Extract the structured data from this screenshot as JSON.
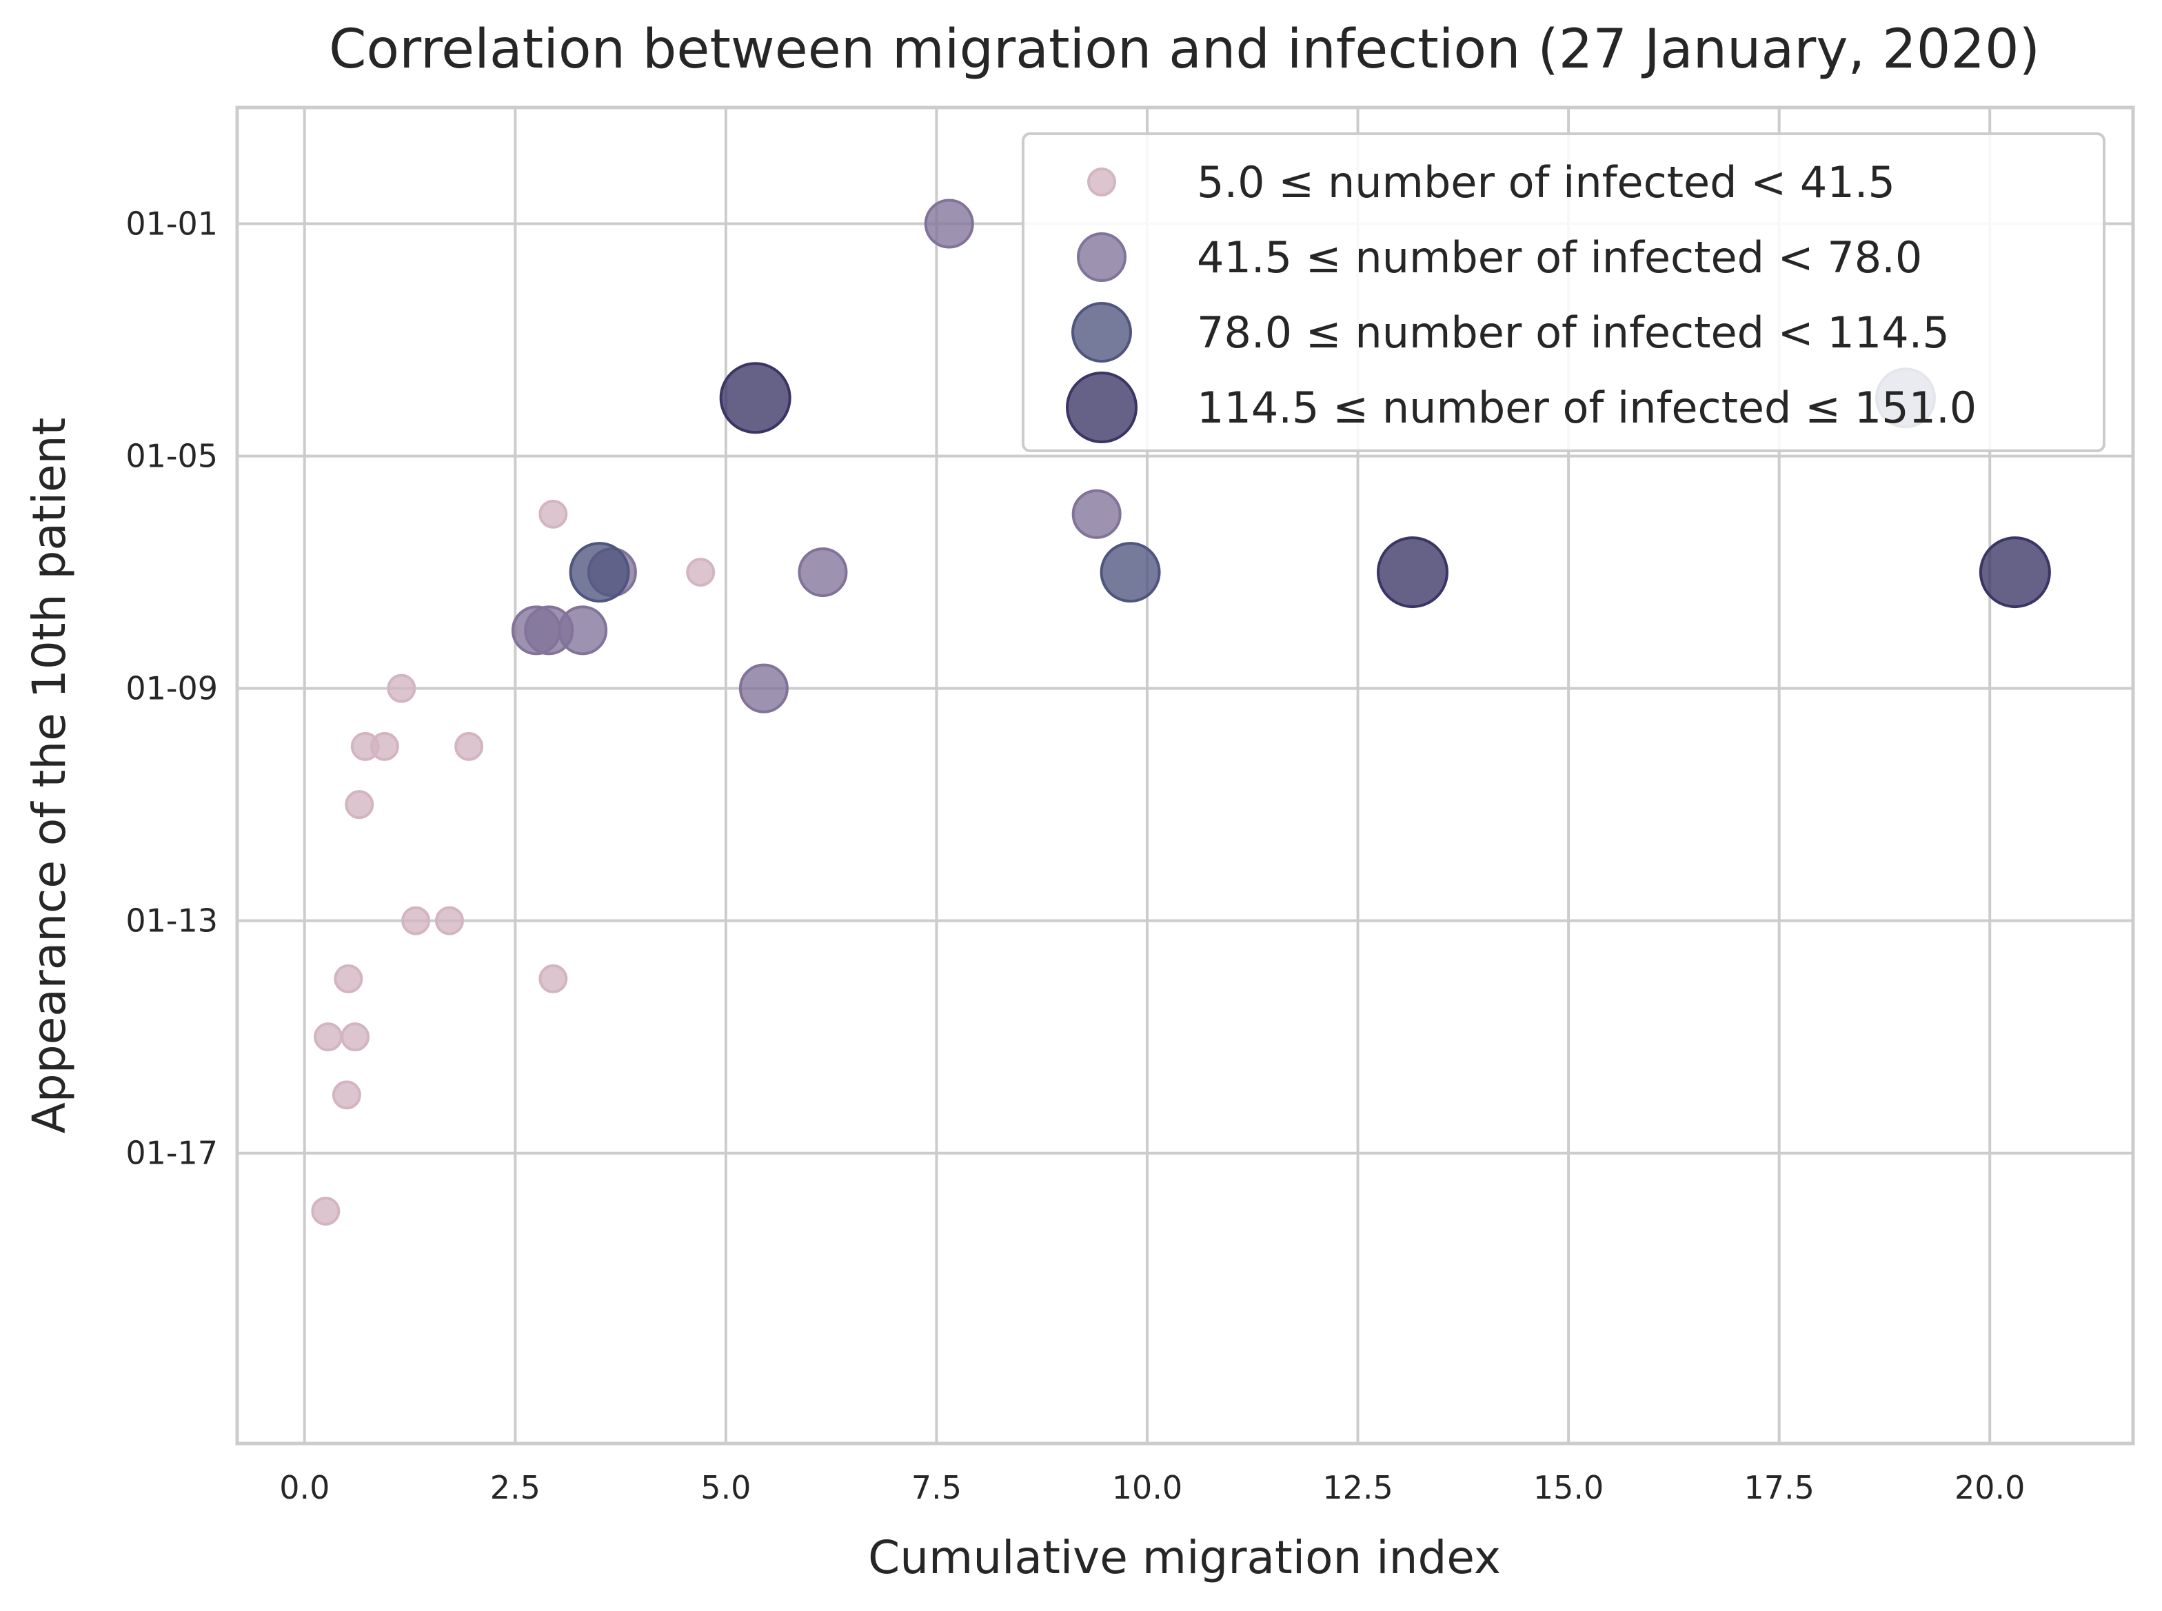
{
  "chart_data": {
    "type": "scatter",
    "title": "Correlation between migration and infection (27 January, 2020)",
    "xlabel": "Cumulative migration index",
    "ylabel": "Appearance of the 10th patient",
    "xlim": [
      -0.8,
      21.7
    ],
    "ylim": [
      -21,
      2
    ],
    "grid": true,
    "legend_position": "top-right",
    "x_ticks": [
      {
        "value": 0.0,
        "label": "0.0"
      },
      {
        "value": 2.5,
        "label": "2.5"
      },
      {
        "value": 5.0,
        "label": "5.0"
      },
      {
        "value": 7.5,
        "label": "7.5"
      },
      {
        "value": 10.0,
        "label": "10.0"
      },
      {
        "value": 12.5,
        "label": "12.5"
      },
      {
        "value": 15.0,
        "label": "15.0"
      },
      {
        "value": 17.5,
        "label": "17.5"
      },
      {
        "value": 20.0,
        "label": "20.0"
      }
    ],
    "y_ticks": [
      {
        "value": -16,
        "label": "01-17"
      },
      {
        "value": -12,
        "label": "01-13"
      },
      {
        "value": -8,
        "label": "01-09"
      },
      {
        "value": -4,
        "label": "01-05"
      },
      {
        "value": 0,
        "label": "01-01"
      }
    ],
    "legend": [
      {
        "series": 0,
        "lower": "5.0",
        "op_lower": "≤",
        "text": "number of infected",
        "op_upper": "<",
        "upper": "41.5"
      },
      {
        "series": 1,
        "lower": "41.5",
        "op_lower": "≤",
        "text": "number of infected",
        "op_upper": "<",
        "upper": "78.0"
      },
      {
        "series": 2,
        "lower": "78.0",
        "op_lower": "≤",
        "text": "number of infected",
        "op_upper": "<",
        "upper": "114.5"
      },
      {
        "series": 3,
        "lower": "114.5",
        "op_lower": "≤",
        "text": "number of infected",
        "op_upper": "≤",
        "upper": "151.0"
      }
    ],
    "series": [
      {
        "name": "5.0 ≤ number of infected < 41.5",
        "color": "#d3b5c2",
        "points": [
          {
            "x": 0.25,
            "y": -17
          },
          {
            "x": 0.5,
            "y": -15
          },
          {
            "x": 0.28,
            "y": -14
          },
          {
            "x": 0.6,
            "y": -14
          },
          {
            "x": 0.52,
            "y": -13
          },
          {
            "x": 2.95,
            "y": -13
          },
          {
            "x": 1.32,
            "y": -12
          },
          {
            "x": 1.72,
            "y": -12
          },
          {
            "x": 0.65,
            "y": -10
          },
          {
            "x": 0.72,
            "y": -9
          },
          {
            "x": 0.95,
            "y": -9
          },
          {
            "x": 1.95,
            "y": -9
          },
          {
            "x": 1.15,
            "y": -8
          },
          {
            "x": 4.7,
            "y": -6
          },
          {
            "x": 2.95,
            "y": -5
          }
        ]
      },
      {
        "name": "41.5 ≤ number of infected < 78.0",
        "color": "#82739a",
        "points": [
          {
            "x": 5.45,
            "y": -8
          },
          {
            "x": 2.75,
            "y": -7
          },
          {
            "x": 2.9,
            "y": -7
          },
          {
            "x": 3.3,
            "y": -7
          },
          {
            "x": 3.65,
            "y": -6
          },
          {
            "x": 6.15,
            "y": -6
          },
          {
            "x": 9.4,
            "y": -5
          },
          {
            "x": 7.65,
            "y": 0
          }
        ]
      },
      {
        "name": "78.0 ≤ number of infected < 114.5",
        "color": "#50557f",
        "points": [
          {
            "x": 3.5,
            "y": -6
          },
          {
            "x": 9.8,
            "y": -6
          },
          {
            "x": 19.0,
            "y": -3
          }
        ]
      },
      {
        "name": "114.5 ≤ number of infected ≤ 151.0",
        "color": "#3a3565",
        "points": [
          {
            "x": 13.15,
            "y": -6
          },
          {
            "x": 20.3,
            "y": -6
          },
          {
            "x": 5.35,
            "y": -3
          }
        ]
      }
    ]
  }
}
